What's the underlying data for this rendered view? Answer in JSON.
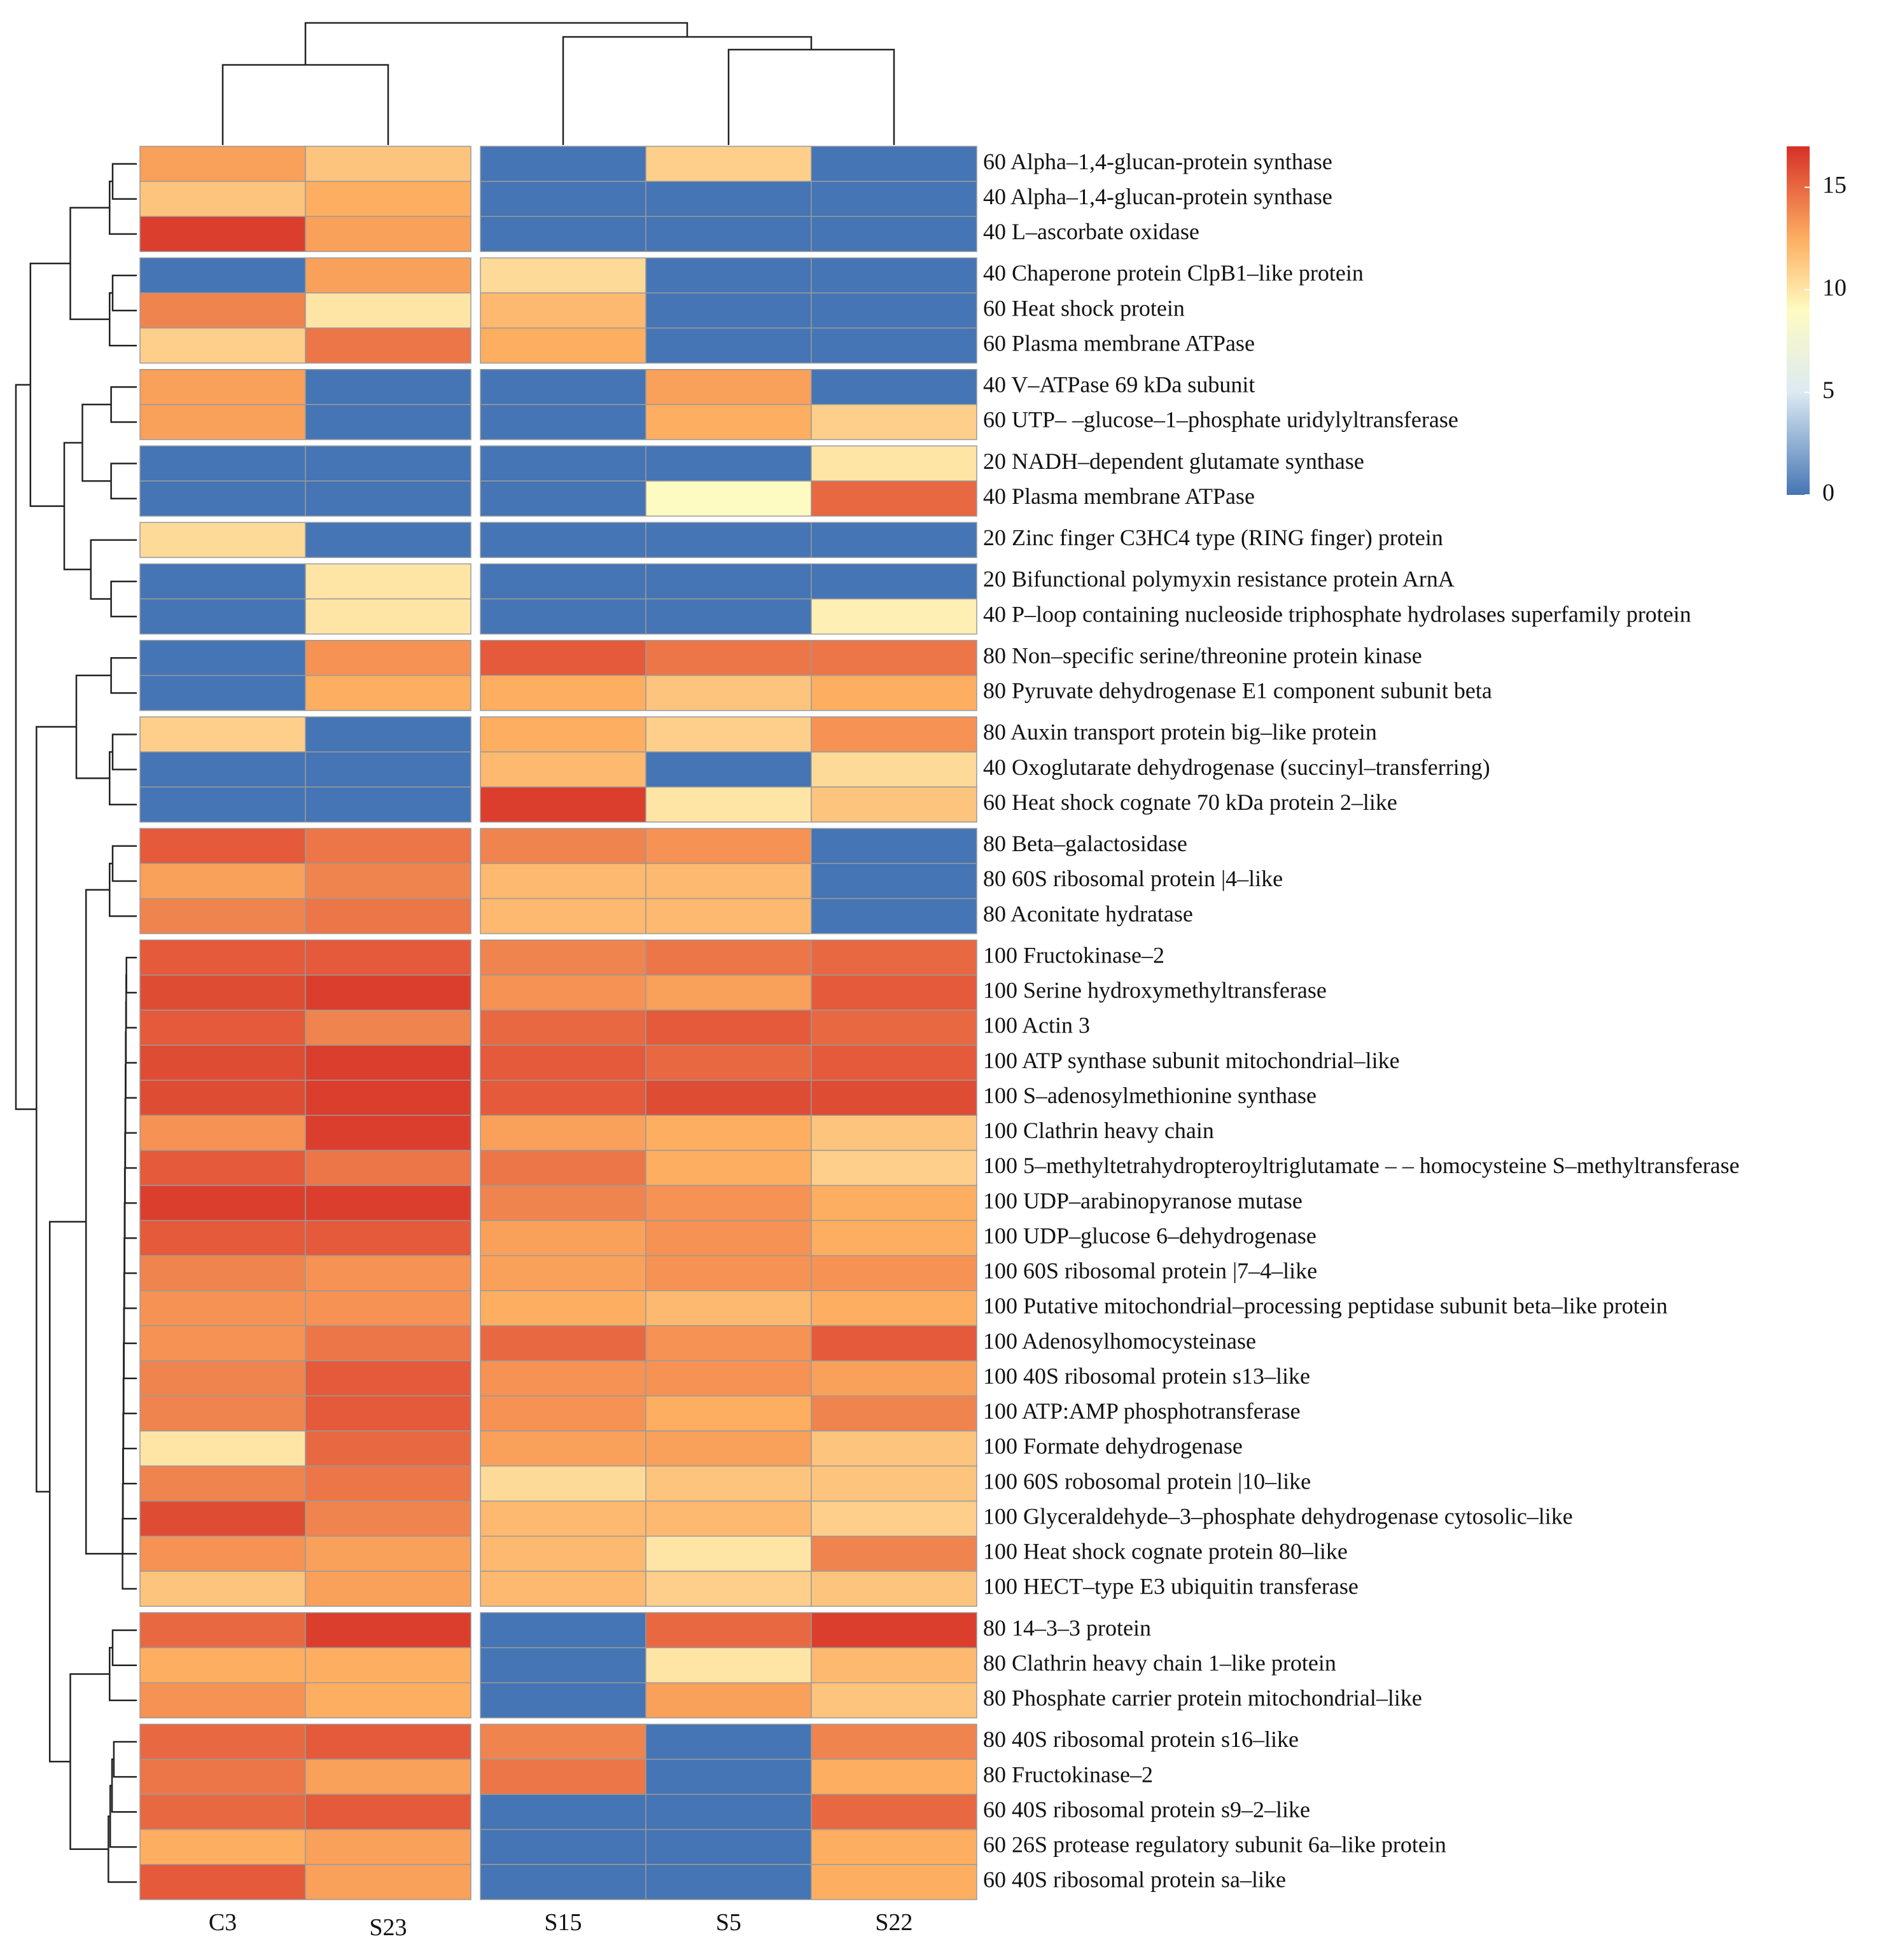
{
  "chart_data": {
    "type": "heatmap",
    "title": "",
    "xlabel": "",
    "ylabel": "",
    "columns": [
      "C3",
      "S23",
      "S15",
      "S5",
      "S22"
    ],
    "column_split_after": 2,
    "color_scale": {
      "min": 0,
      "max": 17,
      "ticks": [
        0,
        5,
        10,
        15
      ],
      "stops": [
        {
          "value": 0,
          "color": "#4575b4"
        },
        {
          "value": 5,
          "color": "#dceaf2"
        },
        {
          "value": 9,
          "color": "#fefbc2"
        },
        {
          "value": 12.5,
          "color": "#fdae61"
        },
        {
          "value": 17,
          "color": "#d73027"
        }
      ],
      "legend_position": "top-right"
    },
    "row_groups": [
      {
        "rows": [
          {
            "label": "60 Alpha–1,4-glucan-protein synthase",
            "values": [
              13,
              11.5,
              0,
              11,
              0
            ]
          },
          {
            "label": "40 Alpha–1,4-glucan-protein synthase",
            "values": [
              11.5,
              12.5,
              0,
              0,
              0
            ]
          },
          {
            "label": "40 L–ascorbate oxidase",
            "values": [
              16.5,
              13,
              0,
              0,
              0
            ]
          }
        ]
      },
      {
        "rows": [
          {
            "label": "40 Chaperone protein ClpB1–like protein",
            "values": [
              0,
              13,
              10.5,
              0,
              0
            ]
          },
          {
            "label": "60 Heat shock protein",
            "values": [
              14,
              10,
              12,
              0,
              0
            ]
          },
          {
            "label": "60 Plasma membrane ATPase",
            "values": [
              11,
              14.5,
              12.5,
              0,
              0
            ]
          }
        ]
      },
      {
        "rows": [
          {
            "label": "40 V–ATPase 69 kDa subunit",
            "values": [
              13,
              0,
              0,
              13,
              0
            ]
          },
          {
            "label": "60 UTP– –glucose–1–phosphate uridylyltransferase",
            "values": [
              13,
              0,
              0,
              12.5,
              11
            ]
          }
        ]
      },
      {
        "rows": [
          {
            "label": "20 NADH–dependent glutamate synthase",
            "values": [
              0,
              0,
              0,
              0,
              10
            ]
          },
          {
            "label": "40 Plasma membrane ATPase",
            "values": [
              0,
              0,
              0,
              9,
              15
            ]
          }
        ]
      },
      {
        "rows": [
          {
            "label": "20 Zinc finger C3HC4 type (RING finger) protein",
            "values": [
              10.5,
              0,
              0,
              0,
              0
            ]
          }
        ]
      },
      {
        "rows": [
          {
            "label": "20 Bifunctional polymyxin resistance protein ArnA",
            "values": [
              0,
              10,
              0,
              0,
              0
            ]
          },
          {
            "label": "40 P–loop containing nucleoside triphosphate hydrolases superfamily protein",
            "values": [
              0,
              10,
              0,
              0,
              9.5
            ]
          }
        ]
      },
      {
        "rows": [
          {
            "label": "80 Non–specific serine/threonine protein kinase",
            "values": [
              0,
              13.5,
              15.5,
              14.5,
              14.5
            ]
          },
          {
            "label": "80 Pyruvate dehydrogenase E1 component subunit beta",
            "values": [
              0,
              12.5,
              12.5,
              11.5,
              12.5
            ]
          }
        ]
      },
      {
        "rows": [
          {
            "label": "80 Auxin transport protein big–like protein",
            "values": [
              11,
              0,
              12.5,
              11,
              13.5
            ]
          },
          {
            "label": "40 Oxoglutarate dehydrogenase (succinyl–transferring)",
            "values": [
              0,
              0,
              12,
              0,
              10.5
            ]
          },
          {
            "label": "60 Heat shock cognate 70 kDa protein 2–like",
            "values": [
              0,
              0,
              16.5,
              10,
              11.5
            ]
          }
        ]
      },
      {
        "rows": [
          {
            "label": "80 Beta–galactosidase",
            "values": [
              15.5,
              14.5,
              14,
              13.5,
              0
            ]
          },
          {
            "label": "80 60S ribosomal protein |4–like",
            "values": [
              13,
              14,
              12,
              12,
              0
            ]
          },
          {
            "label": "80 Aconitate hydratase",
            "values": [
              14,
              14.5,
              12,
              12,
              0
            ]
          }
        ]
      },
      {
        "rows": [
          {
            "label": "100 Fructokinase–2",
            "values": [
              15.5,
              15.5,
              14,
              14.5,
              15
            ]
          },
          {
            "label": "100 Serine hydroxymethyltransferase",
            "values": [
              16,
              16.5,
              13.5,
              13,
              15.5
            ]
          },
          {
            "label": "100 Actin 3",
            "values": [
              15.5,
              14,
              15,
              15.5,
              15
            ]
          },
          {
            "label": "100 ATP synthase subunit mitochondrial–like",
            "values": [
              16,
              16.5,
              15.5,
              15,
              15.5
            ]
          },
          {
            "label": "100 S–adenosylmethionine synthase",
            "values": [
              16,
              16.5,
              15.5,
              16,
              16
            ]
          },
          {
            "label": "100 Clathrin heavy chain",
            "values": [
              13.5,
              16.5,
              13,
              12.5,
              11.5
            ]
          },
          {
            "label": "100 5–methyltetrahydropteroyltriglutamate – – homocysteine S–methyltransferase",
            "values": [
              15.5,
              14.5,
              14.5,
              12.5,
              11
            ]
          },
          {
            "label": "100 UDP–arabinopyranose mutase",
            "values": [
              16.5,
              16.5,
              14,
              13.5,
              12.5
            ]
          },
          {
            "label": "100 UDP–glucose 6–dehydrogenase",
            "values": [
              15.5,
              15.5,
              13,
              13.5,
              12.5
            ]
          },
          {
            "label": "100 60S ribosomal protein |7–4–like",
            "values": [
              14,
              13.5,
              13,
              13.5,
              13.5
            ]
          },
          {
            "label": "100 Putative mitochondrial–processing peptidase subunit beta–like protein",
            "values": [
              13.5,
              13.5,
              12.5,
              12,
              12.5
            ]
          },
          {
            "label": "100 Adenosylhomocysteinase",
            "values": [
              13.5,
              14.5,
              15,
              13.5,
              15.5
            ]
          },
          {
            "label": "100 40S ribosomal protein s13–like",
            "values": [
              14,
              15.5,
              13.5,
              13.5,
              13
            ]
          },
          {
            "label": "100 ATP:AMP phosphotransferase",
            "values": [
              14,
              15.5,
              13.5,
              12.5,
              14
            ]
          },
          {
            "label": "100 Formate dehydrogenase",
            "values": [
              10,
              15,
              13,
              13,
              11.5
            ]
          },
          {
            "label": "100 60S robosomal protein |10–like",
            "values": [
              14,
              14.5,
              10.5,
              11.5,
              11.5
            ]
          },
          {
            "label": "100 Glyceraldehyde–3–phosphate dehydrogenase cytosolic–like",
            "values": [
              16,
              14,
              12,
              12,
              11
            ]
          },
          {
            "label": "100 Heat shock cognate protein 80–like",
            "values": [
              13.5,
              13,
              12,
              10,
              14
            ]
          },
          {
            "label": "100 HECT–type E3 ubiquitin transferase",
            "values": [
              11.5,
              13,
              12,
              11,
              11.5
            ]
          }
        ]
      },
      {
        "rows": [
          {
            "label": "80 14–3–3 protein",
            "values": [
              15,
              16.5,
              0,
              15,
              16.5
            ]
          },
          {
            "label": "80 Clathrin heavy chain 1–like protein",
            "values": [
              12.5,
              12.5,
              0,
              10,
              12
            ]
          },
          {
            "label": "80 Phosphate carrier protein mitochondrial–like",
            "values": [
              13.5,
              12.5,
              0,
              13,
              11.5
            ]
          }
        ]
      },
      {
        "rows": [
          {
            "label": "80 40S ribosomal protein s16–like",
            "values": [
              15,
              15.5,
              14,
              0,
              14
            ]
          },
          {
            "label": "80 Fructokinase–2",
            "values": [
              14.5,
              13,
              14.5,
              0,
              12.5
            ]
          },
          {
            "label": "60 40S ribosomal protein s9–2–like",
            "values": [
              15,
              15.5,
              0,
              0,
              15
            ]
          },
          {
            "label": "60 26S protease regulatory subunit 6a–like protein",
            "values": [
              12.5,
              13,
              0,
              0,
              12.5
            ]
          },
          {
            "label": "60 40S ribosomal protein sa–like",
            "values": [
              15.5,
              13,
              0,
              0,
              12.5
            ]
          }
        ]
      }
    ]
  }
}
